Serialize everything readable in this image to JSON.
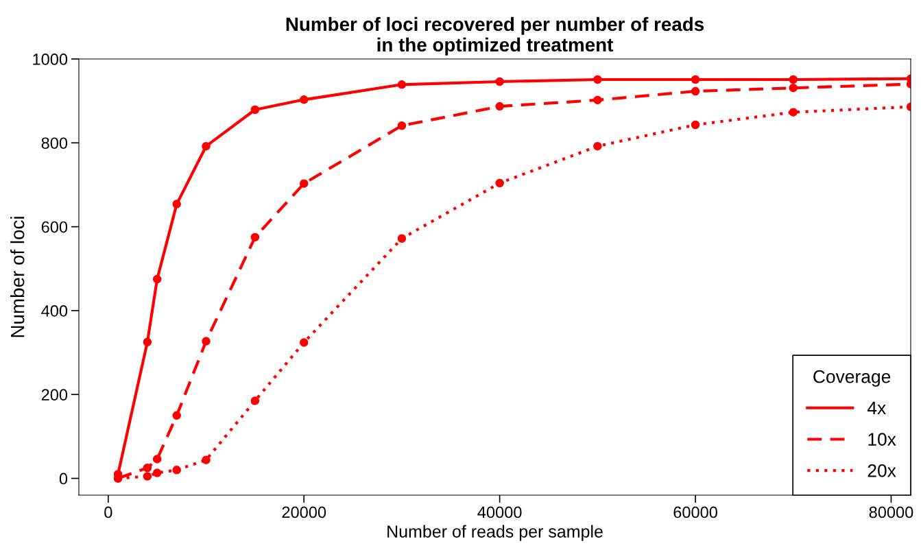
{
  "chart_data": {
    "type": "line",
    "title": "Number of loci recovered per number of reads\nin the optimized treatment",
    "xlabel": "Number of reads per sample",
    "ylabel": "Number of loci",
    "legend_title": "Coverage",
    "x": [
      1000,
      4000,
      5000,
      7000,
      10000,
      15000,
      20000,
      30000,
      40000,
      50000,
      60000,
      70000,
      82000
    ],
    "series": [
      {
        "name": "4x",
        "color": "#ff0000",
        "line_style": "solid",
        "values": [
          10,
          325,
          475,
          654,
          792,
          879,
          903,
          939,
          946,
          951,
          951,
          951,
          953
        ]
      },
      {
        "name": "10x",
        "color": "#ff0000",
        "line_style": "dashed",
        "values": [
          0,
          25,
          46,
          150,
          327,
          575,
          703,
          841,
          887,
          902,
          923,
          931,
          940
        ]
      },
      {
        "name": "20x",
        "color": "#ff0000",
        "line_style": "dotted",
        "values": [
          0,
          5,
          13,
          20,
          44,
          185,
          324,
          572,
          704,
          792,
          843,
          873,
          886
        ]
      }
    ],
    "xlim": [
      -3000,
      82000
    ],
    "ylim": [
      -40,
      1000
    ],
    "xticks": [
      0,
      20000,
      40000,
      60000,
      80000
    ],
    "yticks": [
      0,
      200,
      400,
      600,
      800,
      1000
    ],
    "marker": "circle",
    "grid": false,
    "legend": "bottom right"
  }
}
